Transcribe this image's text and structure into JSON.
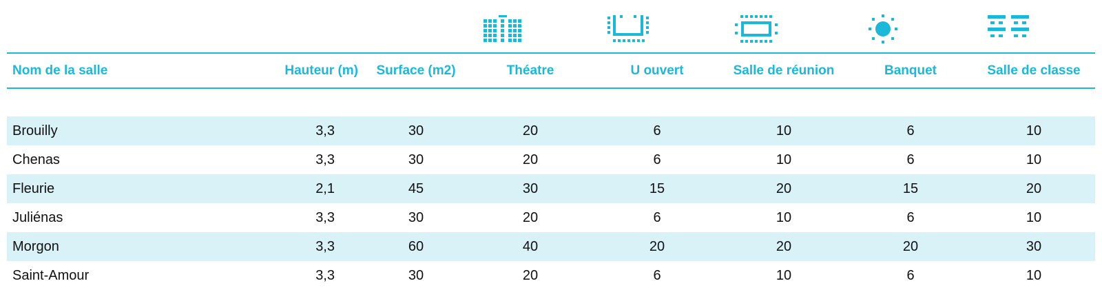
{
  "headers": {
    "name": "Nom de la salle",
    "hauteur": "Hauteur (m)",
    "surface": "Surface (m2)",
    "theatre": "Théatre",
    "u_ouvert": "U ouvert",
    "reunion": "Salle de réunion",
    "banquet": "Banquet",
    "classe": "Salle de classe"
  },
  "icons": {
    "theatre": "theatre-seating-icon",
    "u_ouvert": "u-shape-icon",
    "reunion": "boardroom-icon",
    "banquet": "banquet-round-table-icon",
    "classe": "classroom-icon",
    "color": "#1cb8d8"
  },
  "colors": {
    "accent": "#1cb8d8",
    "row_shade": "#d9f2f7"
  },
  "rows": [
    {
      "name": "Brouilly",
      "hauteur": "3,3",
      "surface": "30",
      "theatre": "20",
      "u_ouvert": "6",
      "reunion": "10",
      "banquet": "6",
      "classe": "10"
    },
    {
      "name": "Chenas",
      "hauteur": "3,3",
      "surface": "30",
      "theatre": "20",
      "u_ouvert": "6",
      "reunion": "10",
      "banquet": "6",
      "classe": "10"
    },
    {
      "name": "Fleurie",
      "hauteur": "2,1",
      "surface": "45",
      "theatre": "30",
      "u_ouvert": "15",
      "reunion": "20",
      "banquet": "15",
      "classe": "20"
    },
    {
      "name": "Juliénas",
      "hauteur": "3,3",
      "surface": "30",
      "theatre": "20",
      "u_ouvert": "6",
      "reunion": "10",
      "banquet": "6",
      "classe": "10"
    },
    {
      "name": "Morgon",
      "hauteur": "3,3",
      "surface": "60",
      "theatre": "40",
      "u_ouvert": "20",
      "reunion": "20",
      "banquet": "20",
      "classe": "30"
    },
    {
      "name": "Saint-Amour",
      "hauteur": "3,3",
      "surface": "30",
      "theatre": "20",
      "u_ouvert": "6",
      "reunion": "10",
      "banquet": "6",
      "classe": "10"
    }
  ]
}
